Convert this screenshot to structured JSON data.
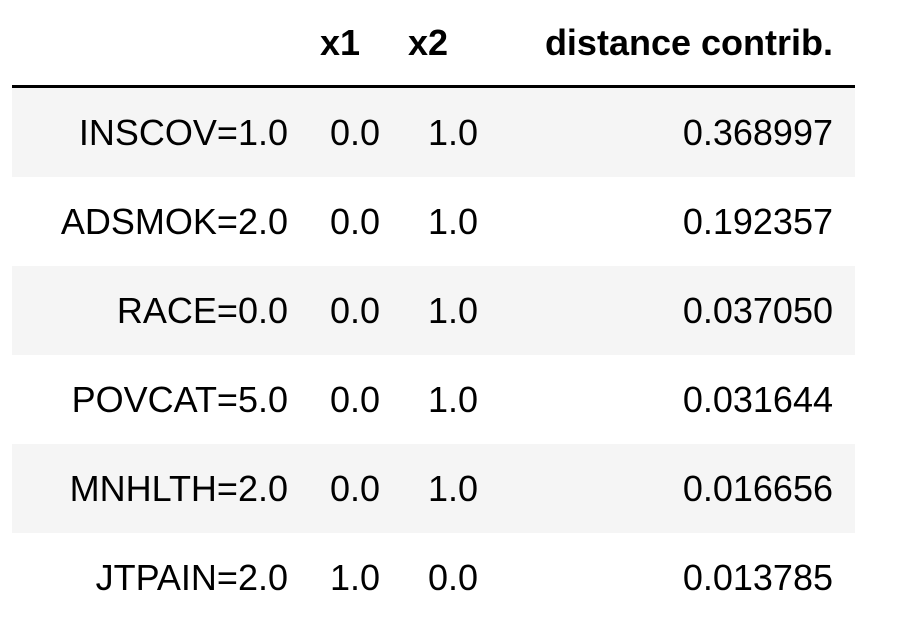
{
  "table": {
    "columns": {
      "index": "",
      "x1": "x1",
      "x2": "x2",
      "distance": "distance contrib."
    },
    "rows": [
      {
        "label": "INSCOV=1.0",
        "x1": "0.0",
        "x2": "1.0",
        "distance": "0.368997"
      },
      {
        "label": "ADSMOK=2.0",
        "x1": "0.0",
        "x2": "1.0",
        "distance": "0.192357"
      },
      {
        "label": "RACE=0.0",
        "x1": "0.0",
        "x2": "1.0",
        "distance": "0.037050"
      },
      {
        "label": "POVCAT=5.0",
        "x1": "0.0",
        "x2": "1.0",
        "distance": "0.031644"
      },
      {
        "label": "MNHLTH=2.0",
        "x1": "0.0",
        "x2": "1.0",
        "distance": "0.016656"
      },
      {
        "label": "JTPAIN=2.0",
        "x1": "1.0",
        "x2": "0.0",
        "distance": "0.013785"
      }
    ],
    "stripe_color": "#f5f5f5",
    "header_rule_color": "#000000"
  }
}
